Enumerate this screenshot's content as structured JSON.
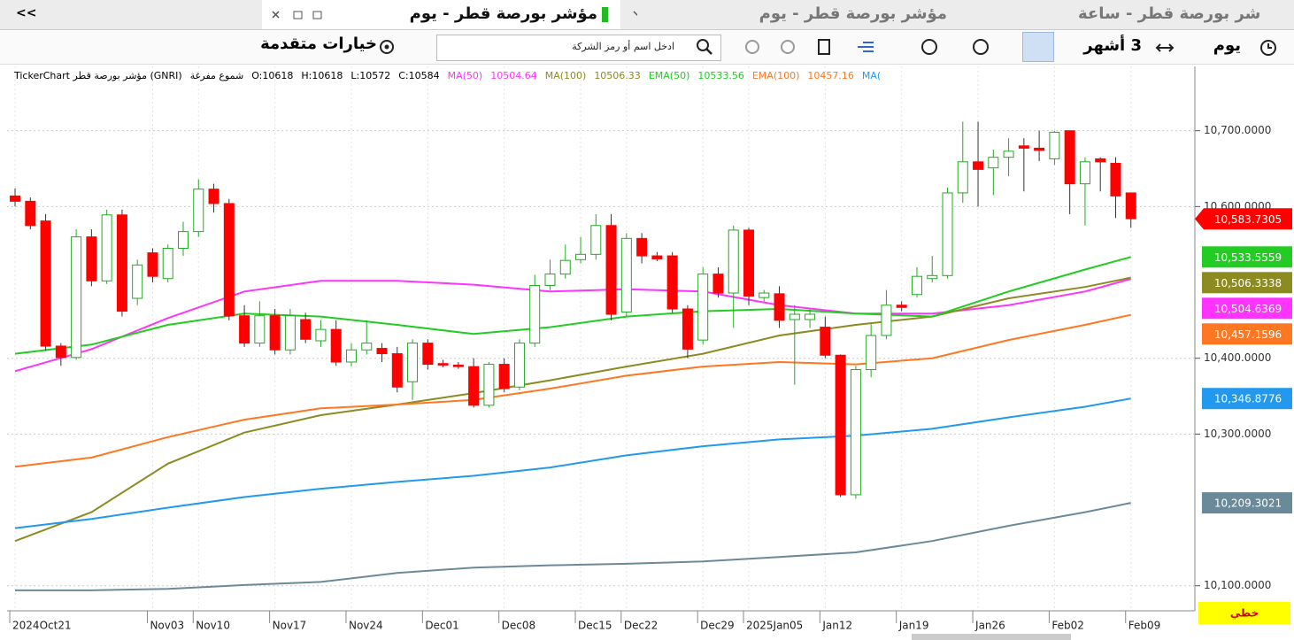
{
  "tabs": {
    "collapse": "<<",
    "items": [
      "مؤشر بورصة قطر - يوم",
      "مؤشر بورصة قطر - يوم",
      "شر بورصة قطر - ساعة"
    ]
  },
  "toolbar": {
    "period": "يوم",
    "range": "3 أشهر",
    "search_placeholder": "ادخل اسم أو رمز الشركة",
    "advanced": "خيارات متقدمة"
  },
  "info": {
    "source": "TickerChart مؤشر بورصة قطر (GNRI)",
    "style": "شموع مفرغة",
    "ohlc": [
      "O:10618",
      "H:10618",
      "L:10572",
      "C:10584"
    ]
  },
  "chart_data": {
    "type": "candlestick",
    "categories": [
      "2024Oct21",
      null,
      null,
      null,
      null,
      null,
      null,
      null,
      null,
      "Nov03",
      null,
      null,
      "Nov10",
      null,
      null,
      null,
      null,
      "Nov17",
      null,
      null,
      null,
      null,
      "Nov24",
      null,
      null,
      null,
      null,
      "Dec01",
      null,
      null,
      null,
      null,
      "Dec08",
      null,
      null,
      null,
      null,
      "Dec15",
      null,
      null,
      "Dec22",
      null,
      null,
      null,
      null,
      "Dec29",
      null,
      null,
      "2025Jan05",
      null,
      null,
      null,
      null,
      "Jan12",
      null,
      null,
      null,
      null,
      "Jan19",
      null,
      null,
      null,
      null,
      "Jan26",
      null,
      null,
      null,
      null,
      "Feb02",
      null,
      null,
      null,
      null,
      "Feb09"
    ],
    "open": [
      10614,
      10607,
      10581,
      10416,
      10401,
      10560,
      10502,
      10589,
      10479,
      10539,
      10505,
      10545,
      10567,
      10623,
      10604,
      10456,
      10420,
      10456,
      10411,
      10451,
      10423,
      10438,
      10395,
      10411,
      10413,
      10406,
      10369,
      10420,
      10393,
      10391,
      10389,
      10338,
      10392,
      10362,
      10420,
      10496,
      10511,
      10530,
      10537,
      10575,
      10461,
      10558,
      10535,
      10535,
      10465,
      10424,
      10511,
      10486,
      10569,
      10480,
      10485,
      10451,
      10451,
      10441,
      10404,
      10220,
      10385,
      10430,
      10470,
      10484,
      10505,
      10509,
      10618,
      10659,
      10651,
      10665,
      10680,
      10677,
      10663,
      10700,
      10630,
      10663,
      10657,
      10618
    ],
    "high": [
      10624,
      10612,
      10590,
      10420,
      10570,
      10570,
      10596,
      10596,
      10530,
      10545,
      10550,
      10580,
      10636,
      10630,
      10610,
      10470,
      10475,
      10465,
      10465,
      10460,
      10450,
      10450,
      10420,
      10450,
      10420,
      10415,
      10425,
      10425,
      10398,
      10395,
      10400,
      10395,
      10400,
      10425,
      10510,
      10530,
      10550,
      10560,
      10590,
      10590,
      10565,
      10565,
      10540,
      10540,
      10470,
      10520,
      10520,
      10575,
      10572,
      10490,
      10495,
      10470,
      10465,
      10455,
      10405,
      10390,
      10445,
      10490,
      10475,
      10520,
      10535,
      10625,
      10712,
      10712,
      10675,
      10690,
      10690,
      10700,
      10700,
      10700,
      10665,
      10665,
      10665,
      10618
    ],
    "low": [
      10600,
      10570,
      10410,
      10390,
      10398,
      10495,
      10498,
      10455,
      10470,
      10500,
      10500,
      10535,
      10560,
      10592,
      10450,
      10415,
      10415,
      10405,
      10405,
      10420,
      10415,
      10390,
      10389,
      10405,
      10395,
      10355,
      10345,
      10385,
      10388,
      10386,
      10335,
      10335,
      10355,
      10358,
      10415,
      10490,
      10505,
      10525,
      10530,
      10450,
      10455,
      10525,
      10528,
      10460,
      10400,
      10418,
      10480,
      10440,
      10470,
      10475,
      10440,
      10365,
      10440,
      10400,
      10217,
      10215,
      10375,
      10425,
      10462,
      10480,
      10500,
      10505,
      10605,
      10600,
      10615,
      10640,
      10620,
      10660,
      10655,
      10590,
      10575,
      10620,
      10585,
      10572
    ],
    "close": [
      10607,
      10575,
      10416,
      10401,
      10560,
      10502,
      10589,
      10462,
      10523,
      10508,
      10545,
      10567,
      10623,
      10604,
      10456,
      10420,
      10456,
      10411,
      10456,
      10425,
      10438,
      10395,
      10411,
      10420,
      10406,
      10362,
      10420,
      10392,
      10391,
      10389,
      10338,
      10392,
      10360,
      10420,
      10496,
      10511,
      10529,
      10537,
      10575,
      10458,
      10558,
      10535,
      10531,
      10465,
      10412,
      10511,
      10486,
      10569,
      10482,
      10486,
      10450,
      10458,
      10458,
      10404,
      10220,
      10385,
      10430,
      10470,
      10467,
      10508,
      10509,
      10618,
      10659,
      10649,
      10665,
      10673,
      10677,
      10674,
      10698,
      10630,
      10659,
      10659,
      10614,
      10584
    ],
    "up_color": "#22aa22",
    "down_color": "#ff0000",
    "ylim": [
      10067,
      10779
    ],
    "yticks": [
      {
        "value": 10700,
        "label": "10,700.0000"
      },
      {
        "value": 10600,
        "label": "10,600.0000"
      },
      {
        "value": 10400,
        "label": "10,400.0000"
      },
      {
        "value": 10300,
        "label": "10,300.0000"
      },
      {
        "value": 10100,
        "label": "10,100.0000"
      }
    ],
    "grid": true,
    "last_price": 10583.7305,
    "last_price_label": "10,583.7305",
    "series": [
      {
        "name": "MA(50)",
        "legend_label": "10504.64",
        "color": "#ff33ff",
        "x": [
          0,
          5,
          10,
          15,
          20,
          25,
          30,
          35,
          40,
          45,
          50,
          55,
          60,
          65,
          70,
          73
        ],
        "values": [
          10383,
          10412,
          10453,
          10488,
          10502,
          10502,
          10497,
          10488,
          10491,
          10488,
          10470,
          10459,
          10459,
          10470,
          10488,
          10504.6369
        ],
        "value_label": "10,504.6369"
      },
      {
        "name": "MA(100)",
        "legend_label": "10506.33",
        "color": "#8b8b22",
        "x": [
          0,
          5,
          10,
          15,
          20,
          25,
          30,
          35,
          40,
          45,
          50,
          55,
          60,
          65,
          70,
          73
        ],
        "values": [
          10159,
          10197,
          10261,
          10302,
          10325,
          10339,
          10354,
          10371,
          10389,
          10406,
          10430,
          10444,
          10455,
          10479,
          10494,
          10506.3338
        ],
        "value_label": "10,506.3338"
      },
      {
        "name": "EMA(50)",
        "legend_label": "10533.56",
        "color": "#22cc22",
        "x": [
          0,
          5,
          10,
          15,
          20,
          25,
          30,
          35,
          40,
          45,
          50,
          55,
          60,
          65,
          70,
          73
        ],
        "values": [
          10406,
          10418,
          10444,
          10459,
          10455,
          10444,
          10432,
          10441,
          10455,
          10462,
          10465,
          10459,
          10455,
          10488,
          10517,
          10533.5559
        ],
        "value_label": "10,533.5559"
      },
      {
        "name": "EMA(100)",
        "legend_label": "10457.16",
        "color": "#ff7722",
        "x": [
          0,
          5,
          10,
          15,
          20,
          25,
          30,
          35,
          40,
          45,
          50,
          55,
          60,
          65,
          70,
          73
        ],
        "values": [
          10257,
          10269,
          10296,
          10319,
          10334,
          10339,
          10345,
          10360,
          10377,
          10389,
          10395,
          10392,
          10400,
          10424,
          10444,
          10457.1596
        ],
        "value_label": "10,457.1596"
      },
      {
        "name": "MA(",
        "color": "#2299ee",
        "x": [
          0,
          5,
          10,
          15,
          20,
          25,
          30,
          35,
          40,
          45,
          50,
          55,
          60,
          65,
          70,
          73
        ],
        "values": [
          10176,
          10188,
          10203,
          10217,
          10228,
          10237,
          10245,
          10256,
          10272,
          10284,
          10293,
          10298,
          10307,
          10322,
          10336,
          10346.8776
        ],
        "value_label": "10,346.8776"
      },
      {
        "color": "#6b8a99",
        "x": [
          0,
          5,
          10,
          15,
          20,
          25,
          30,
          35,
          40,
          45,
          50,
          55,
          60,
          65,
          70,
          73
        ],
        "values": [
          10094,
          10094,
          10096,
          10101,
          10105,
          10117,
          10124,
          10127,
          10129,
          10132,
          10138,
          10144,
          10159,
          10179,
          10197,
          10209.3021
        ],
        "value_label": "10,209.3021"
      }
    ],
    "mode_label": "خطي"
  }
}
